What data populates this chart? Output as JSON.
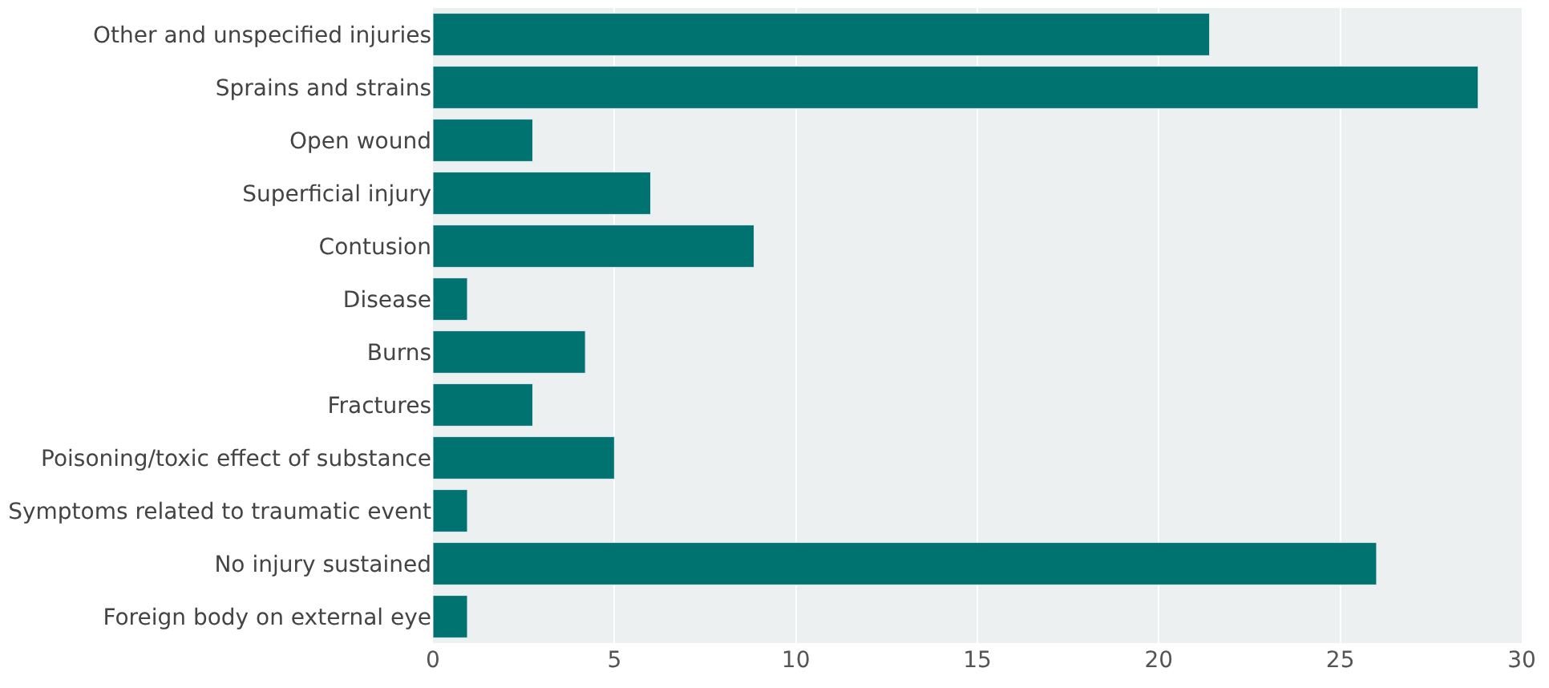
{
  "chart_data": {
    "type": "bar",
    "orientation": "horizontal",
    "categories": [
      "Other and unspecified injuries",
      "Sprains and strains",
      "Open wound",
      "Superficial injury",
      "Contusion",
      "Disease",
      "Burns",
      "Fractures",
      "Poisoning/toxic effect of substance",
      "Symptoms related to traumatic event",
      "No injury sustained",
      "Foreign body on external eye"
    ],
    "values": [
      21.4,
      28.8,
      2.75,
      6.0,
      8.85,
      0.95,
      4.2,
      2.75,
      5.0,
      0.95,
      26.0,
      0.95
    ],
    "color": "#007370",
    "xlim": [
      0,
      30
    ],
    "xticks": [
      0,
      5,
      10,
      15,
      20,
      25,
      30
    ],
    "grid": "x"
  }
}
